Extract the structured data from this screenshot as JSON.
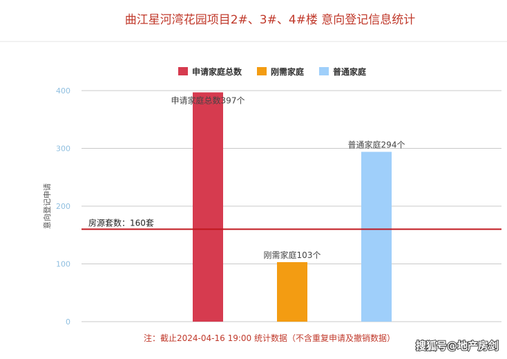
{
  "chart_data": {
    "type": "bar",
    "title": "曲江星河湾花园项目2#、3#、4#楼 意向登记信息统计",
    "ylabel": "意向登记申请",
    "ylim": [
      0,
      400
    ],
    "yticks": [
      0,
      100,
      200,
      300,
      400
    ],
    "series": [
      {
        "name": "申请家庭总数",
        "value": 397,
        "label": "申请家庭总数397个",
        "color": "#d63b4f"
      },
      {
        "name": "刚需家庭",
        "value": 103,
        "label": "刚需家庭103个",
        "color": "#f39c12"
      },
      {
        "name": "普通家庭",
        "value": 294,
        "label": "普通家庭294个",
        "color": "#9fcffa"
      }
    ],
    "reference_line": {
      "value": 160,
      "label": "房源套数：160套",
      "color": "#c0171e"
    },
    "grid": true,
    "legend_position": "top-center"
  },
  "footnote": "注：截止2024-04-16 19:00 统计数据（不含重复申请及撤销数据）",
  "watermark": "搜狐号@地产房剑"
}
